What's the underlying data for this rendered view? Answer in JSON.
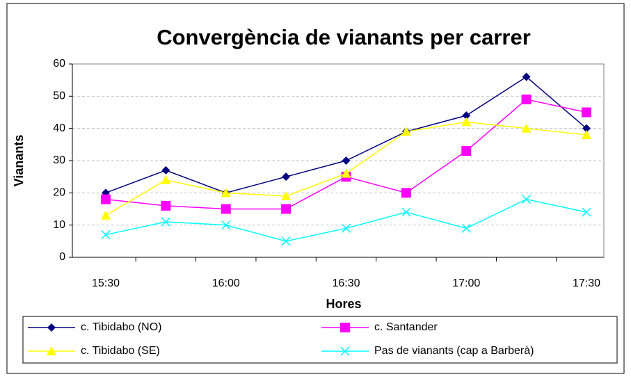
{
  "chart_data": {
    "type": "line",
    "title": "Convergència de vianants per carrer",
    "x_label": "Hores",
    "y_label": "Vianants",
    "categories": [
      "15:30",
      null,
      "16:00",
      null,
      "16:30",
      null,
      "17:00",
      null,
      "17:30"
    ],
    "series": [
      {
        "name": "c. Tibidabo (NO)",
        "color": "#000080",
        "marker": "diamond",
        "values": [
          20,
          27,
          20,
          25,
          30,
          39,
          44,
          56,
          40
        ]
      },
      {
        "name": "c. Santander",
        "color": "#ff00ff",
        "marker": "square",
        "values": [
          18,
          16,
          15,
          15,
          25,
          20,
          33,
          49,
          45
        ]
      },
      {
        "name": "c. Tibidabo (SE)",
        "color": "#ffff00",
        "marker": "triangle",
        "values": [
          13,
          24,
          20,
          19,
          26,
          39,
          42,
          40,
          38
        ]
      },
      {
        "name": "Pas de vianants (cap a Barberà)",
        "color": "#00ffff",
        "marker": "x",
        "values": [
          7,
          11,
          10,
          5,
          9,
          14,
          9,
          18,
          14
        ]
      }
    ],
    "ylim": [
      0,
      60
    ],
    "yticks": [
      0,
      10,
      20,
      30,
      40,
      50,
      60
    ],
    "grid": true
  }
}
